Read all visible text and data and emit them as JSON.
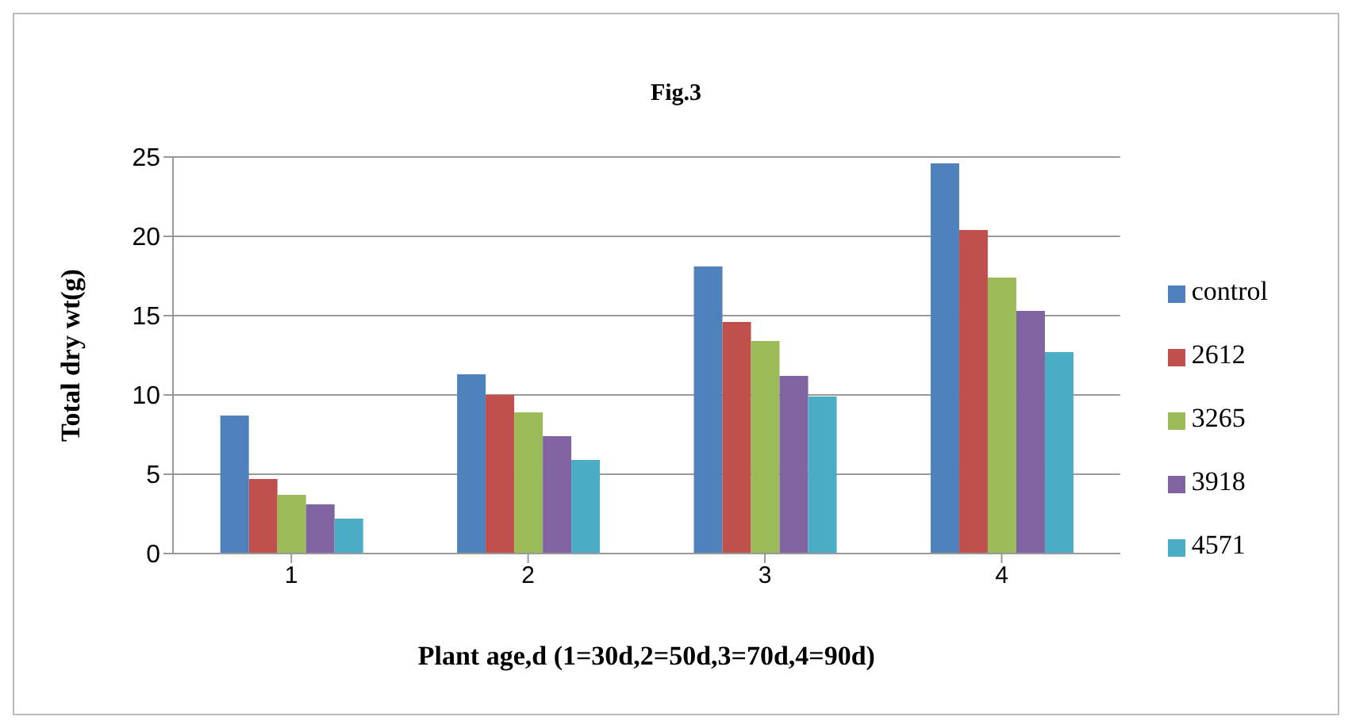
{
  "chart_data": {
    "type": "bar",
    "title": "Fig.3",
    "xlabel": "Plant age,d (1=30d,2=50d,3=70d,4=90d)",
    "ylabel": "Total dry wt(g)",
    "categories": [
      "1",
      "2",
      "3",
      "4"
    ],
    "series": [
      {
        "name": "control",
        "color": "#4f81bd",
        "values": [
          8.7,
          11.3,
          18.1,
          24.6
        ]
      },
      {
        "name": "2612",
        "color": "#c0504d",
        "values": [
          4.7,
          10.0,
          14.6,
          20.4
        ]
      },
      {
        "name": "3265",
        "color": "#9bbb59",
        "values": [
          3.7,
          8.9,
          13.4,
          17.4
        ]
      },
      {
        "name": "3918",
        "color": "#8064a2",
        "values": [
          3.1,
          7.4,
          11.2,
          15.3
        ]
      },
      {
        "name": "4571",
        "color": "#4bacc6",
        "values": [
          2.2,
          5.9,
          9.9,
          12.7
        ]
      }
    ],
    "ylim": [
      0,
      25
    ],
    "yticks": [
      0,
      5,
      10,
      15,
      20,
      25
    ],
    "grid": "y",
    "legend": "right"
  }
}
